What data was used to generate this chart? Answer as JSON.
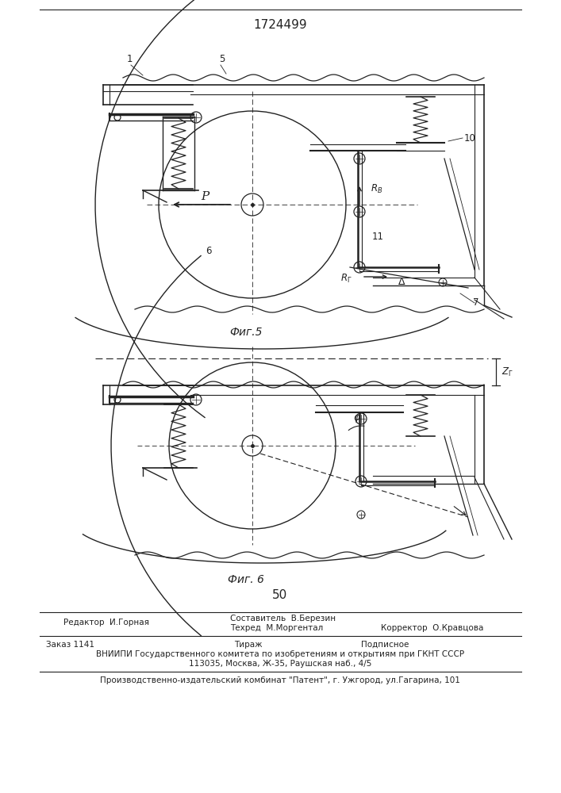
{
  "title": "1724499",
  "fig5_label": "Фиг.5",
  "fig6_label": "Фиг. 6",
  "page_number": "50",
  "editor_line": "Редактор  И.Горная",
  "composer_line1": "Составитель  В.Березин",
  "composer_line2": "Техред  М.Моргентал",
  "corrector_line": "Корректор  О.Кравцова",
  "order_line": "Заказ 1141",
  "tirazh_line": "Тираж",
  "podpisnoe_line": "Подписное",
  "vniipи_line": "ВНИИПИ Государственного комитета по изобретениям и открытиям при ГКНТ СССР",
  "address_line": "113035, Москва, Ж-35, Раушская наб., 4/5",
  "factory_line": "Производственно-издательский комбинат \"Патент\", г. Ужгород, ул.Гагарина, 101",
  "bg_color": "#ffffff",
  "line_color": "#222222"
}
